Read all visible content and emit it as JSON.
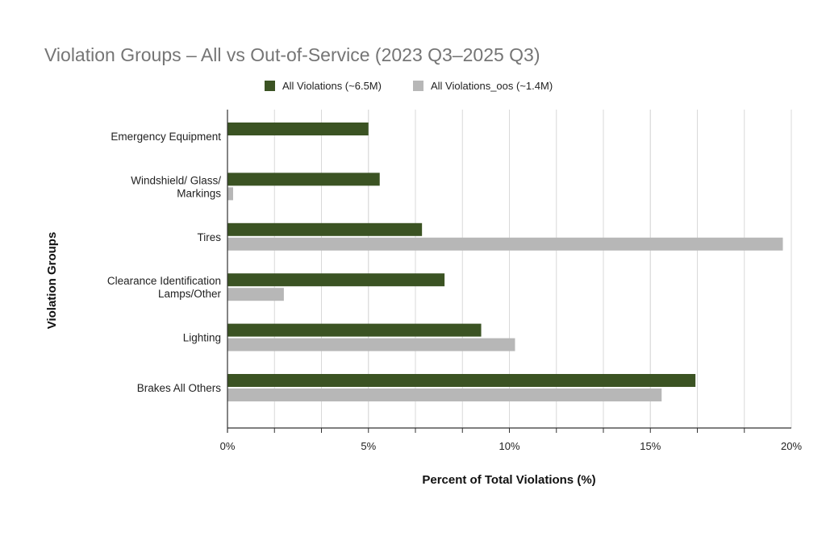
{
  "chart_data": {
    "type": "bar",
    "orientation": "horizontal",
    "title": "Violation Groups – All vs Out-of-Service (2023 Q3–2025 Q3)",
    "xlabel": "Percent of Total Violations (%)",
    "ylabel": "Violation Groups",
    "categories": [
      "Emergency Equipment",
      "Windshield/ Glass/ Markings",
      "Tires",
      "Clearance Identification Lamps/Other",
      "Lighting",
      "Brakes All Others"
    ],
    "category_lines": [
      [
        "Emergency Equipment"
      ],
      [
        "Windshield/ Glass/",
        "Markings"
      ],
      [
        "Tires"
      ],
      [
        "Clearance Identification",
        "Lamps/Other"
      ],
      [
        "Lighting"
      ],
      [
        "Brakes All Others"
      ]
    ],
    "series": [
      {
        "name": "All Violations (~6.5M)",
        "color": "#3b5323",
        "values": [
          5.0,
          5.4,
          6.9,
          7.7,
          9.0,
          16.6
        ]
      },
      {
        "name": "All Violations_oos (~1.4M)",
        "color": "#b7b7b7",
        "values": [
          0.0,
          0.2,
          19.7,
          2.0,
          10.2,
          15.4
        ]
      }
    ],
    "xlim": [
      0,
      20
    ],
    "xticks": [
      0,
      5,
      10,
      15,
      20
    ],
    "xtick_labels": [
      "0%",
      "5%",
      "10%",
      "15%",
      "20%"
    ],
    "minor_grid_step": 1.6667,
    "grid": true,
    "legend_position": "top"
  }
}
